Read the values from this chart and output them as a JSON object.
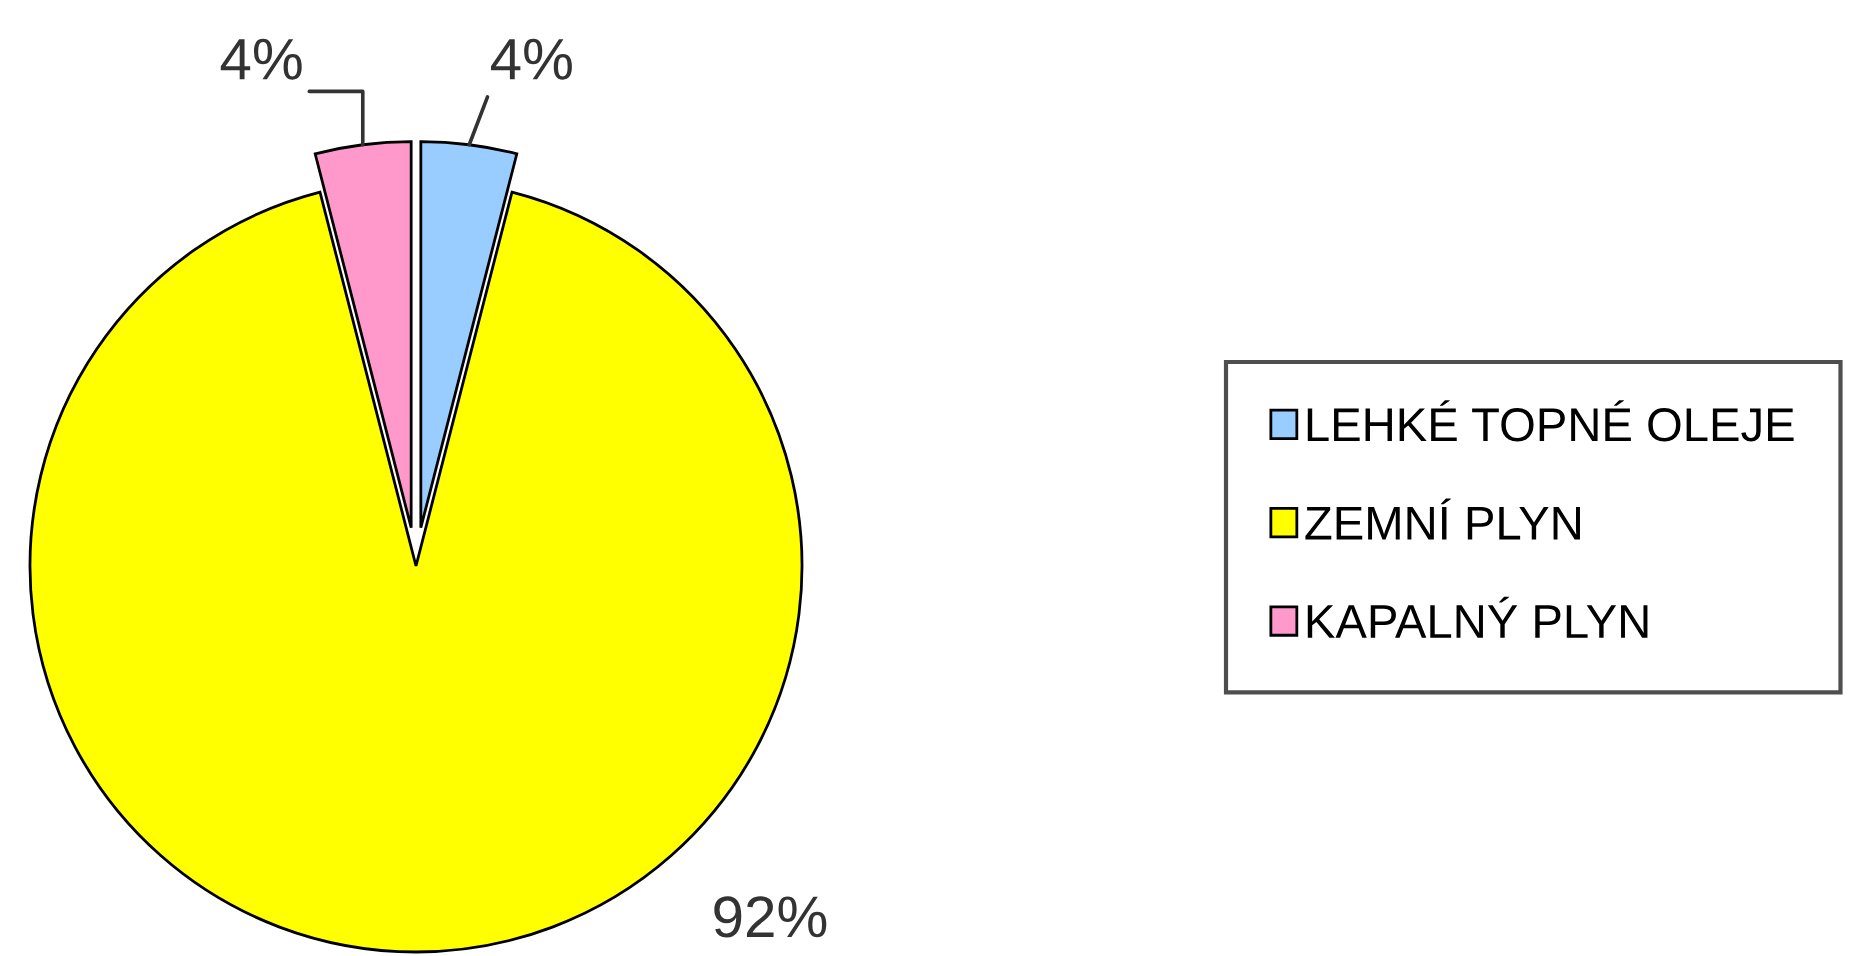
{
  "chart_data": {
    "type": "pie",
    "categories": [
      "LEHKÉ TOPNÉ OLEJE",
      "ZEMNÍ PLYN",
      "KAPALNÝ PLYN"
    ],
    "values": [
      4,
      92,
      4
    ],
    "colors": [
      "#99ccff",
      "#ffff00",
      "#ff99cc"
    ],
    "value_labels": [
      "4%",
      "92%",
      "4%"
    ],
    "legend": "right"
  }
}
